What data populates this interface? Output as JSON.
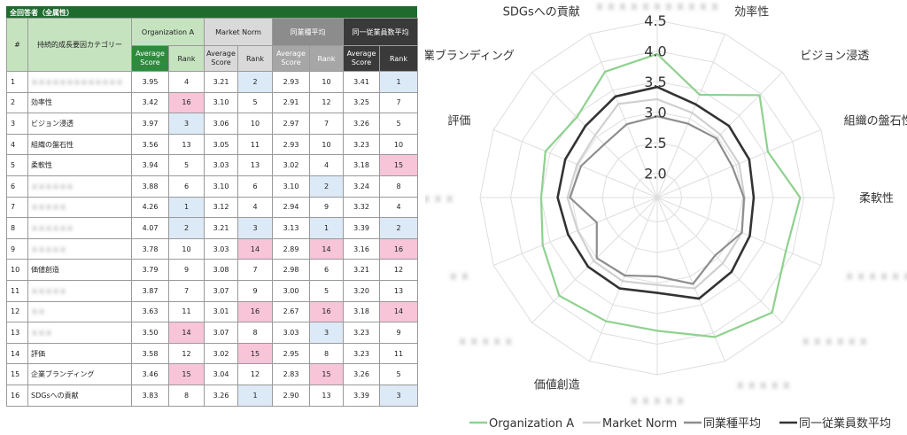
{
  "table": {
    "title": "全回答者（全属性）",
    "col_num": "#",
    "col_category": "持続的成長要因カテゴリー",
    "groups": [
      "Organization A",
      "Market Norm",
      "同業種平均",
      "同一従業員数平均"
    ],
    "sub_score": "Average Score",
    "sub_rank": "Rank",
    "rows": [
      {
        "n": "1",
        "cat": "ｘｘｘｘｘｘｘｘｘｘｘｘｘ",
        "blurred": true,
        "org_s": "3.95",
        "org_r": "4",
        "mkt_s": "3.21",
        "mkt_r": "2",
        "ind_s": "2.93",
        "ind_r": "10",
        "emp_s": "3.41",
        "emp_r": "1",
        "hl": {
          "org": "",
          "mkt": "blue",
          "ind": "",
          "emp": "blue"
        }
      },
      {
        "n": "2",
        "cat": "効率性",
        "blurred": false,
        "org_s": "3.42",
        "org_r": "16",
        "mkt_s": "3.10",
        "mkt_r": "5",
        "ind_s": "2.91",
        "ind_r": "12",
        "emp_s": "3.25",
        "emp_r": "7",
        "hl": {
          "org": "pink",
          "mkt": "",
          "ind": "",
          "emp": ""
        }
      },
      {
        "n": "3",
        "cat": "ビジョン浸透",
        "blurred": false,
        "org_s": "3.97",
        "org_r": "3",
        "mkt_s": "3.06",
        "mkt_r": "10",
        "ind_s": "2.97",
        "ind_r": "7",
        "emp_s": "3.26",
        "emp_r": "5",
        "hl": {
          "org": "blue",
          "mkt": "",
          "ind": "",
          "emp": ""
        }
      },
      {
        "n": "4",
        "cat": "組織の盤石性",
        "blurred": false,
        "org_s": "3.56",
        "org_r": "13",
        "mkt_s": "3.05",
        "mkt_r": "11",
        "ind_s": "2.93",
        "ind_r": "10",
        "emp_s": "3.23",
        "emp_r": "10",
        "hl": {
          "org": "",
          "mkt": "",
          "ind": "",
          "emp": ""
        }
      },
      {
        "n": "5",
        "cat": "柔軟性",
        "blurred": false,
        "org_s": "3.94",
        "org_r": "5",
        "mkt_s": "3.03",
        "mkt_r": "13",
        "ind_s": "3.02",
        "ind_r": "4",
        "emp_s": "3.18",
        "emp_r": "15",
        "hl": {
          "org": "",
          "mkt": "",
          "ind": "",
          "emp": "pink"
        }
      },
      {
        "n": "6",
        "cat": "ｘｘｘｘｘｘ",
        "blurred": true,
        "org_s": "3.88",
        "org_r": "6",
        "mkt_s": "3.10",
        "mkt_r": "6",
        "ind_s": "3.10",
        "ind_r": "2",
        "emp_s": "3.24",
        "emp_r": "8",
        "hl": {
          "org": "",
          "mkt": "",
          "ind": "blue",
          "emp": ""
        }
      },
      {
        "n": "7",
        "cat": "ｘｘｘｘｘ",
        "blurred": true,
        "org_s": "4.26",
        "org_r": "1",
        "mkt_s": "3.12",
        "mkt_r": "4",
        "ind_s": "2.94",
        "ind_r": "9",
        "emp_s": "3.32",
        "emp_r": "4",
        "hl": {
          "org": "blue",
          "mkt": "",
          "ind": "",
          "emp": ""
        }
      },
      {
        "n": "8",
        "cat": "ｘｘｘｘｘｘ",
        "blurred": true,
        "org_s": "4.07",
        "org_r": "2",
        "mkt_s": "3.21",
        "mkt_r": "3",
        "ind_s": "3.13",
        "ind_r": "1",
        "emp_s": "3.39",
        "emp_r": "2",
        "hl": {
          "org": "blue",
          "mkt": "blue",
          "ind": "blue",
          "emp": "blue"
        }
      },
      {
        "n": "9",
        "cat": "ｘｘｘｘｘ",
        "blurred": true,
        "org_s": "3.78",
        "org_r": "10",
        "mkt_s": "3.03",
        "mkt_r": "14",
        "ind_s": "2.89",
        "ind_r": "14",
        "emp_s": "3.16",
        "emp_r": "16",
        "hl": {
          "org": "",
          "mkt": "pink",
          "ind": "pink",
          "emp": "pink"
        }
      },
      {
        "n": "10",
        "cat": "価値創造",
        "blurred": false,
        "org_s": "3.79",
        "org_r": "9",
        "mkt_s": "3.08",
        "mkt_r": "7",
        "ind_s": "2.98",
        "ind_r": "6",
        "emp_s": "3.21",
        "emp_r": "12",
        "hl": {
          "org": "",
          "mkt": "",
          "ind": "",
          "emp": ""
        }
      },
      {
        "n": "11",
        "cat": "ｘｘｘｘｘ",
        "blurred": true,
        "org_s": "3.87",
        "org_r": "7",
        "mkt_s": "3.07",
        "mkt_r": "9",
        "ind_s": "3.00",
        "ind_r": "5",
        "emp_s": "3.20",
        "emp_r": "13",
        "hl": {
          "org": "",
          "mkt": "",
          "ind": "",
          "emp": ""
        }
      },
      {
        "n": "12",
        "cat": "ｘｘ",
        "blurred": true,
        "org_s": "3.63",
        "org_r": "11",
        "mkt_s": "3.01",
        "mkt_r": "16",
        "ind_s": "2.67",
        "ind_r": "16",
        "emp_s": "3.18",
        "emp_r": "14",
        "hl": {
          "org": "",
          "mkt": "pink",
          "ind": "pink",
          "emp": "pink"
        }
      },
      {
        "n": "13",
        "cat": "ｘｘｘ",
        "blurred": true,
        "org_s": "3.50",
        "org_r": "14",
        "mkt_s": "3.07",
        "mkt_r": "8",
        "ind_s": "3.03",
        "ind_r": "3",
        "emp_s": "3.23",
        "emp_r": "9",
        "hl": {
          "org": "pink",
          "mkt": "",
          "ind": "blue",
          "emp": ""
        }
      },
      {
        "n": "14",
        "cat": "評価",
        "blurred": false,
        "org_s": "3.58",
        "org_r": "12",
        "mkt_s": "3.02",
        "mkt_r": "15",
        "ind_s": "2.95",
        "ind_r": "8",
        "emp_s": "3.23",
        "emp_r": "11",
        "hl": {
          "org": "",
          "mkt": "pink",
          "ind": "",
          "emp": ""
        }
      },
      {
        "n": "15",
        "cat": "企業ブランディング",
        "blurred": false,
        "org_s": "3.46",
        "org_r": "15",
        "mkt_s": "3.04",
        "mkt_r": "12",
        "ind_s": "2.83",
        "ind_r": "15",
        "emp_s": "3.26",
        "emp_r": "5",
        "hl": {
          "org": "pink",
          "mkt": "",
          "ind": "pink",
          "emp": ""
        }
      },
      {
        "n": "16",
        "cat": "SDGsへの貢献",
        "blurred": false,
        "org_s": "3.83",
        "org_r": "8",
        "mkt_s": "3.26",
        "mkt_r": "1",
        "ind_s": "2.90",
        "ind_r": "13",
        "emp_s": "3.39",
        "emp_r": "3",
        "hl": {
          "org": "",
          "mkt": "blue",
          "ind": "",
          "emp": "blue"
        }
      }
    ]
  },
  "colors": {
    "org": "#8fd18f",
    "mkt": "#d0d0d0",
    "ind": "#8e8e8e",
    "emp": "#333333",
    "grid": "#dedede",
    "highlight_low": "#f7c4d8",
    "highlight_high": "#dce9f7"
  },
  "chart_data": {
    "type": "radar",
    "axis_labels": [
      "ｘｘｘｘｘｘｘｘｘｘｘ",
      "効率性",
      "ビジョン浸透",
      "組織の盤石性",
      "柔軟性",
      "ｘｘｘｘｘｘ",
      "ｘｘｘｘｘｘ",
      "ｘｘｘｘｘ",
      "ｘｘｘｘｘ",
      "価値創造",
      "ｘｘｘｘｘ",
      "ｘｘ",
      "ｘｘｘ",
      "評価",
      "企業ブランディング",
      "SDGsへの貢献"
    ],
    "axis_blurred": [
      true,
      false,
      false,
      false,
      false,
      true,
      true,
      true,
      true,
      false,
      true,
      true,
      true,
      false,
      false,
      false
    ],
    "r_ticks": [
      "2.0",
      "2.5",
      "3.0",
      "3.5",
      "4.0",
      "4.5"
    ],
    "r_range": [
      1.6,
      4.5
    ],
    "series": [
      {
        "name": "Organization A",
        "key": "org",
        "values": [
          3.95,
          3.42,
          3.97,
          3.56,
          3.94,
          3.88,
          4.26,
          4.07,
          3.78,
          3.79,
          3.87,
          3.63,
          3.5,
          3.58,
          3.46,
          3.83
        ]
      },
      {
        "name": "Market Norm",
        "key": "mkt",
        "values": [
          3.21,
          3.1,
          3.06,
          3.05,
          3.03,
          3.1,
          3.12,
          3.21,
          3.03,
          3.08,
          3.07,
          3.01,
          3.07,
          3.02,
          3.04,
          3.26
        ]
      },
      {
        "name": "同業種平均",
        "key": "ind",
        "values": [
          2.93,
          2.91,
          2.97,
          2.93,
          3.02,
          3.1,
          2.94,
          3.13,
          2.89,
          2.98,
          3.0,
          2.67,
          3.03,
          2.95,
          2.83,
          2.9
        ]
      },
      {
        "name": "同一従業員数平均",
        "key": "emp",
        "values": [
          3.41,
          3.25,
          3.26,
          3.23,
          3.18,
          3.24,
          3.32,
          3.39,
          3.16,
          3.21,
          3.2,
          3.18,
          3.23,
          3.23,
          3.26,
          3.39
        ]
      }
    ],
    "legend_position": "bottom"
  }
}
